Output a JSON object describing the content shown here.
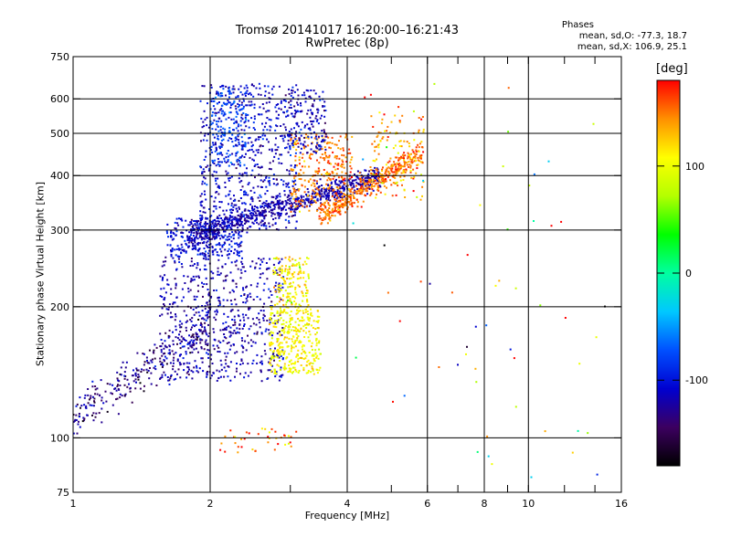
{
  "chart_data": {
    "type": "scatter",
    "title": "Tromsø 20141017 16:20:00–16:21:43",
    "subtitle": "RwPretec (8p)",
    "xlabel": "Frequency [MHz]",
    "ylabel": "Stationary phase Virtual Height [km]",
    "x_scale": "log",
    "y_scale": "log",
    "xlim": [
      1,
      16
    ],
    "ylim": [
      75,
      750
    ],
    "x_ticks": [
      1,
      2,
      4,
      6,
      8,
      10,
      16
    ],
    "x_tick_labels": [
      "1",
      "2",
      "4",
      "6",
      "8",
      "10",
      "16"
    ],
    "x_minor_ticks": [
      3,
      5,
      7,
      9,
      12,
      14
    ],
    "y_ticks": [
      75,
      100,
      200,
      300,
      400,
      500,
      600,
      750
    ],
    "y_tick_labels": [
      "75",
      "100",
      "200",
      "300",
      "400",
      "500",
      "600",
      "750"
    ],
    "x_grid": [
      2,
      4,
      6,
      8,
      10
    ],
    "y_grid": [
      100,
      200,
      300,
      400,
      500,
      600
    ],
    "grid": true,
    "color_encodes": "phase in degrees",
    "colorbar": {
      "label": "[deg]",
      "range": [
        -180,
        180
      ],
      "ticks": [
        100,
        0,
        -100
      ],
      "tick_labels": [
        "100",
        "0",
        "-100"
      ],
      "stops": [
        "#000000",
        "#3c0060",
        "#0000d0",
        "#0050ff",
        "#00c8ff",
        "#00ffa0",
        "#00ff00",
        "#b4ff00",
        "#ffff00",
        "#ff9000",
        "#ff0000"
      ]
    },
    "phase_stats": {
      "heading": "Phases",
      "o_line": "mean, sd,O: -77.3, 18.7",
      "x_line": "mean, sd,X: 106.9, 25.1"
    },
    "clusters": [
      {
        "kind": "trace",
        "n": 260,
        "x": [
          1.0,
          2.0
        ],
        "y": [
          112,
          180
        ],
        "spread": 0.06,
        "phase": -135,
        "phase_sd": 20
      },
      {
        "kind": "box",
        "n": 650,
        "x": [
          1.55,
          2.9
        ],
        "y": [
          135,
          260
        ],
        "phase": -118,
        "phase_sd": 14
      },
      {
        "kind": "box",
        "n": 320,
        "x": [
          1.6,
          2.35
        ],
        "y": [
          260,
          320
        ],
        "phase": -105,
        "phase_sd": 14
      },
      {
        "kind": "box",
        "n": 650,
        "x": [
          1.9,
          3.1
        ],
        "y": [
          300,
          650
        ],
        "phase": -110,
        "phase_sd": 16
      },
      {
        "kind": "box",
        "n": 140,
        "x": [
          2.0,
          2.4
        ],
        "y": [
          420,
          640
        ],
        "phase": -75,
        "phase_sd": 10
      },
      {
        "kind": "trace",
        "n": 700,
        "x": [
          1.8,
          4.7
        ],
        "y": [
          290,
          400
        ],
        "spread": 0.03,
        "phase": -120,
        "phase_sd": 10
      },
      {
        "kind": "box",
        "n": 300,
        "x": [
          3.0,
          4.1
        ],
        "y": [
          330,
          500
        ],
        "phase": 150,
        "phase_sd": 15
      },
      {
        "kind": "box",
        "n": 170,
        "x": [
          2.9,
          3.6
        ],
        "y": [
          450,
          630
        ],
        "phase": -112,
        "phase_sd": 16
      },
      {
        "kind": "trace",
        "n": 380,
        "x": [
          3.5,
          5.8
        ],
        "y": [
          322,
          450
        ],
        "spread": 0.03,
        "phase": 152,
        "phase_sd": 14
      },
      {
        "kind": "box",
        "n": 130,
        "x": [
          4.5,
          5.9
        ],
        "y": [
          350,
          560
        ],
        "phase": 135,
        "phase_sd": 25
      },
      {
        "kind": "box",
        "n": 360,
        "x": [
          2.7,
          3.5
        ],
        "y": [
          140,
          200
        ],
        "phase": 105,
        "phase_sd": 14
      },
      {
        "kind": "box",
        "n": 160,
        "x": [
          2.75,
          3.3
        ],
        "y": [
          200,
          260
        ],
        "phase": 110,
        "phase_sd": 18
      },
      {
        "kind": "box",
        "n": 40,
        "x": [
          2.1,
          3.1
        ],
        "y": [
          92,
          105
        ],
        "phase": 150,
        "phase_sd": 30
      },
      {
        "kind": "box",
        "n": 60,
        "x": [
          4.0,
          15.5
        ],
        "y": [
          78,
          650
        ],
        "phase": 60,
        "phase_sd": 120
      }
    ]
  }
}
